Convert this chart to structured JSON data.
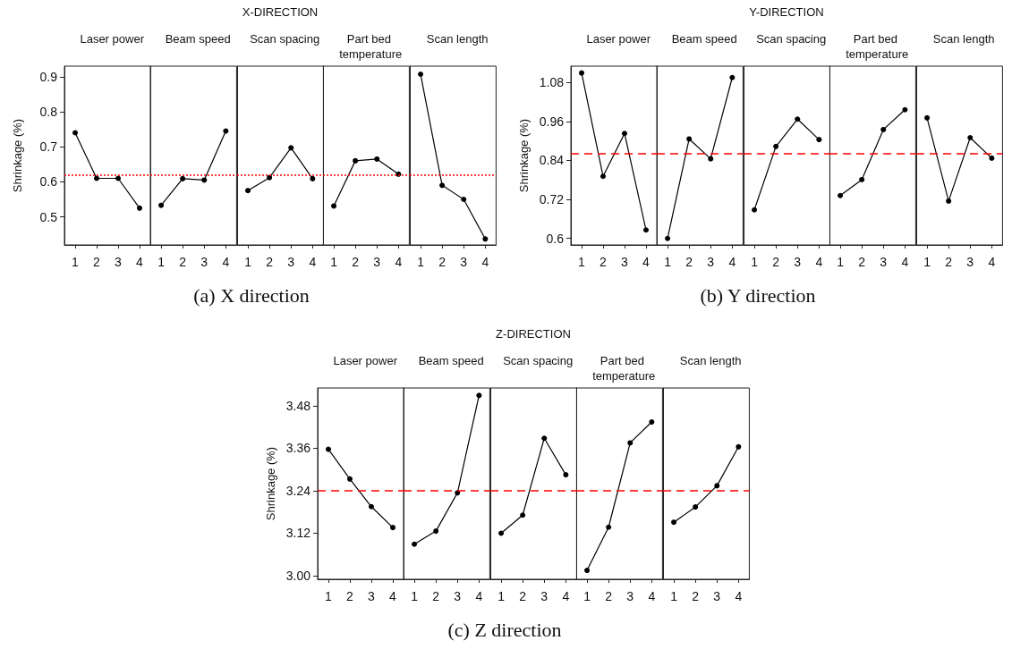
{
  "chart_data": [
    {
      "type": "line",
      "title": "Laser power",
      "annotations": [
        "X-DIRECTION",
        "(a) X direction"
      ],
      "ylabel": "Shrinkage (%)",
      "categories": [
        "1",
        "2",
        "3",
        "4"
      ],
      "ylim": [
        0.42,
        0.93
      ],
      "yticks": [
        0.5,
        0.6,
        0.7,
        0.8,
        0.9
      ],
      "marker": "circle",
      "color": "#000000",
      "values": [
        0.74,
        0.61,
        0.61,
        0.525
      ],
      "ref_lines": [
        {
          "axis": "y",
          "value": 0.62,
          "color": "#ff0000",
          "line_style": "dotted"
        }
      ]
    },
    {
      "type": "line",
      "title": "Beam speed",
      "categories": [
        "1",
        "2",
        "3",
        "4"
      ],
      "ylim": [
        0.42,
        0.93
      ],
      "tick_labels": "x",
      "marker": "circle",
      "color": "#000000",
      "values": [
        0.533,
        0.609,
        0.605,
        0.745
      ],
      "ref_lines": [
        {
          "axis": "y",
          "value": 0.62,
          "color": "#ff0000",
          "line_style": "dotted"
        }
      ]
    },
    {
      "type": "line",
      "title": "Scan spacing",
      "categories": [
        "1",
        "2",
        "3",
        "4"
      ],
      "ylim": [
        0.42,
        0.93
      ],
      "tick_labels": "x",
      "marker": "circle",
      "color": "#000000",
      "values": [
        0.575,
        0.612,
        0.697,
        0.609
      ],
      "ref_lines": [
        {
          "axis": "y",
          "value": 0.62,
          "color": "#ff0000",
          "line_style": "dotted"
        }
      ]
    },
    {
      "type": "line",
      "title": "Part bed temperature",
      "categories": [
        "1",
        "2",
        "3",
        "4"
      ],
      "ylim": [
        0.42,
        0.93
      ],
      "tick_labels": "x",
      "marker": "circle",
      "color": "#000000",
      "values": [
        0.531,
        0.66,
        0.665,
        0.622
      ],
      "ref_lines": [
        {
          "axis": "y",
          "value": 0.62,
          "color": "#ff0000",
          "line_style": "dotted"
        }
      ]
    },
    {
      "type": "line",
      "title": "Scan length",
      "categories": [
        "1",
        "2",
        "3",
        "4"
      ],
      "ylim": [
        0.42,
        0.93
      ],
      "tick_labels": "x",
      "marker": "circle",
      "color": "#000000",
      "values": [
        0.907,
        0.59,
        0.55,
        0.437
      ],
      "ref_lines": [
        {
          "axis": "y",
          "value": 0.62,
          "color": "#ff0000",
          "line_style": "dotted"
        }
      ]
    },
    {
      "type": "line",
      "title": "Laser power",
      "annotations": [
        "Y-DIRECTION",
        "(b) Y direction"
      ],
      "ylabel": "Shrinkage (%)",
      "categories": [
        "1",
        "2",
        "3",
        "4"
      ],
      "ylim": [
        0.58,
        1.13
      ],
      "yticks": [
        0.6,
        0.72,
        0.84,
        0.96,
        1.08
      ],
      "marker": "circle",
      "color": "#000000",
      "values": [
        1.109,
        0.791,
        0.923,
        0.626
      ],
      "ref_lines": [
        {
          "axis": "y",
          "value": 0.86,
          "color": "#ff0000",
          "line_style": "dashed"
        }
      ]
    },
    {
      "type": "line",
      "title": "Beam speed",
      "categories": [
        "1",
        "2",
        "3",
        "4"
      ],
      "ylim": [
        0.58,
        1.13
      ],
      "tick_labels": "x",
      "marker": "circle",
      "color": "#000000",
      "values": [
        0.6,
        0.906,
        0.845,
        1.095
      ],
      "ref_lines": [
        {
          "axis": "y",
          "value": 0.86,
          "color": "#ff0000",
          "line_style": "dashed"
        }
      ]
    },
    {
      "type": "line",
      "title": "Scan spacing",
      "categories": [
        "1",
        "2",
        "3",
        "4"
      ],
      "ylim": [
        0.58,
        1.13
      ],
      "tick_labels": "x",
      "marker": "circle",
      "color": "#000000",
      "values": [
        0.688,
        0.883,
        0.967,
        0.904
      ],
      "ref_lines": [
        {
          "axis": "y",
          "value": 0.86,
          "color": "#ff0000",
          "line_style": "dashed"
        }
      ]
    },
    {
      "type": "line",
      "title": "Part bed temperature",
      "categories": [
        "1",
        "2",
        "3",
        "4"
      ],
      "ylim": [
        0.58,
        1.13
      ],
      "tick_labels": "x",
      "marker": "circle",
      "color": "#000000",
      "values": [
        0.732,
        0.781,
        0.935,
        0.996
      ],
      "ref_lines": [
        {
          "axis": "y",
          "value": 0.86,
          "color": "#ff0000",
          "line_style": "dashed"
        }
      ]
    },
    {
      "type": "line",
      "title": "Scan length",
      "categories": [
        "1",
        "2",
        "3",
        "4"
      ],
      "ylim": [
        0.58,
        1.13
      ],
      "tick_labels": "x",
      "marker": "circle",
      "color": "#000000",
      "values": [
        0.971,
        0.715,
        0.91,
        0.847
      ],
      "ref_lines": [
        {
          "axis": "y",
          "value": 0.86,
          "color": "#ff0000",
          "line_style": "dashed"
        }
      ]
    },
    {
      "type": "line",
      "title": "Laser power",
      "annotations": [
        "Z-DIRECTION",
        "(c) Z direction"
      ],
      "ylabel": "Shrinkage (%)",
      "categories": [
        "1",
        "2",
        "3",
        "4"
      ],
      "ylim": [
        2.99,
        3.53
      ],
      "yticks": [
        {
          "value": 3,
          "label": "3.00"
        },
        3.12,
        3.24,
        3.36,
        3.48
      ],
      "marker": "circle",
      "color": "#000000",
      "values": [
        3.357,
        3.273,
        3.195,
        3.136
      ],
      "ref_lines": [
        {
          "axis": "y",
          "value": 3.24,
          "color": "#ff0000",
          "line_style": "dashed"
        }
      ]
    },
    {
      "type": "line",
      "title": "Beam speed",
      "categories": [
        "1",
        "2",
        "3",
        "4"
      ],
      "ylim": [
        2.99,
        3.53
      ],
      "tick_labels": "x",
      "marker": "circle",
      "color": "#000000",
      "values": [
        3.089,
        3.126,
        3.234,
        3.509
      ],
      "ref_lines": [
        {
          "axis": "y",
          "value": 3.24,
          "color": "#ff0000",
          "line_style": "dashed"
        }
      ]
    },
    {
      "type": "line",
      "title": "Scan spacing",
      "categories": [
        "1",
        "2",
        "3",
        "4"
      ],
      "ylim": [
        2.99,
        3.53
      ],
      "tick_labels": "x",
      "marker": "circle",
      "color": "#000000",
      "values": [
        3.12,
        3.171,
        3.388,
        3.285
      ],
      "ref_lines": [
        {
          "axis": "y",
          "value": 3.24,
          "color": "#ff0000",
          "line_style": "dashed"
        }
      ]
    },
    {
      "type": "line",
      "title": "Part bed temperature",
      "categories": [
        "1",
        "2",
        "3",
        "4"
      ],
      "ylim": [
        2.99,
        3.53
      ],
      "tick_labels": "x",
      "marker": "circle",
      "color": "#000000",
      "values": [
        3.015,
        3.137,
        3.375,
        3.434
      ],
      "ref_lines": [
        {
          "axis": "y",
          "value": 3.24,
          "color": "#ff0000",
          "line_style": "dashed"
        }
      ]
    },
    {
      "type": "line",
      "title": "Scan length",
      "categories": [
        "1",
        "2",
        "3",
        "4"
      ],
      "ylim": [
        2.99,
        3.53
      ],
      "tick_labels": "x",
      "marker": "circle",
      "color": "#000000",
      "values": [
        3.151,
        3.194,
        3.254,
        3.364
      ],
      "ref_lines": [
        {
          "axis": "y",
          "value": 3.24,
          "color": "#ff0000",
          "line_style": "dashed"
        }
      ]
    }
  ]
}
